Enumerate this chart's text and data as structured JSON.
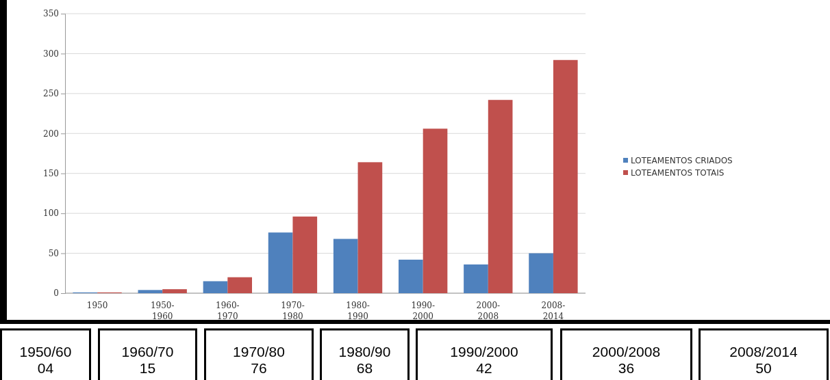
{
  "chart_data": {
    "type": "bar",
    "categories": [
      "1950",
      "1950-\n1960",
      "1960-\n1970",
      "1970-\n1980",
      "1980-\n1990",
      "1990-\n2000",
      "2000-\n2008",
      "2008-\n2014"
    ],
    "series": [
      {
        "name": "LOTEAMENTOS CRIADOS",
        "color": "#4f81bd",
        "values": [
          1,
          4,
          15,
          76,
          68,
          42,
          36,
          50
        ]
      },
      {
        "name": "LOTEAMENTOS TOTAIS",
        "color": "#c0504d",
        "values": [
          1,
          5,
          20,
          96,
          164,
          206,
          242,
          292
        ]
      }
    ],
    "ylim": [
      0,
      350
    ],
    "yticks": [
      0,
      50,
      100,
      150,
      200,
      250,
      300,
      350
    ],
    "grid": "y",
    "legend": "right",
    "annotations": [
      "1950/60\n04",
      "1960/70\n15",
      "1970/80\n76",
      "1980/90\n68",
      "1990/2000\n42",
      "2000/2008\n36",
      "2008/2014\n50"
    ]
  }
}
